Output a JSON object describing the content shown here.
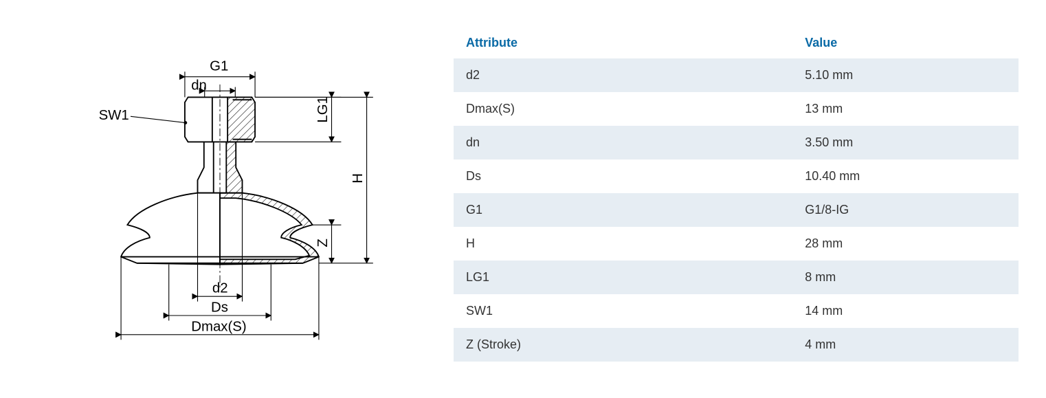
{
  "table": {
    "header_attr": "Attribute",
    "header_val": "Value",
    "rows": [
      {
        "attr": "d2",
        "val": "5.10 mm"
      },
      {
        "attr": "Dmax(S)",
        "val": "13 mm"
      },
      {
        "attr": "dn",
        "val": "3.50 mm"
      },
      {
        "attr": "Ds",
        "val": "10.40 mm"
      },
      {
        "attr": "G1",
        "val": "G1/8-IG"
      },
      {
        "attr": "H",
        "val": "28 mm"
      },
      {
        "attr": "LG1",
        "val": "8 mm"
      },
      {
        "attr": "SW1",
        "val": "14 mm"
      },
      {
        "attr": "Z (Stroke)",
        "val": "4 mm"
      }
    ]
  },
  "diagram": {
    "labels": {
      "G1": "G1",
      "dn": "dn",
      "SW1": "SW1",
      "LG1": "LG1",
      "H": "H",
      "Z": "Z",
      "d2": "d2",
      "Ds": "Ds",
      "Dmax": "Dmax(S)"
    },
    "stroke_color": "#000000",
    "hatch_color": "#000000",
    "fill_color": "#ffffff"
  },
  "style": {
    "header_color": "#0a6aa6",
    "cell_color": "#333333",
    "row_alt_bg": "#e6edf3"
  }
}
